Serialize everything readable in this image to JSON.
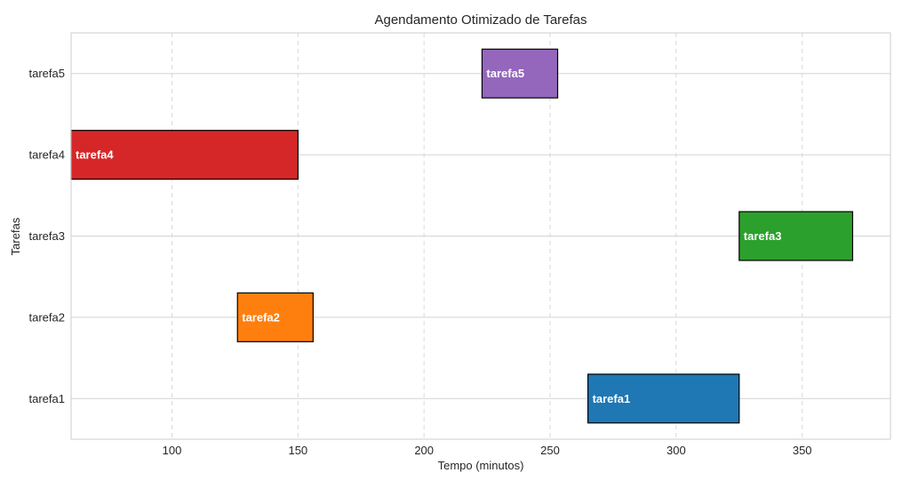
{
  "chart_data": {
    "type": "bar",
    "orientation": "horizontal-gantt",
    "title": "Agendamento Otimizado de Tarefas",
    "xlabel": "Tempo (minutos)",
    "ylabel": "Tarefas",
    "xlim": [
      60,
      385
    ],
    "xticks": [
      100,
      150,
      200,
      250,
      300,
      350
    ],
    "grid": true,
    "categories": [
      "tarefa1",
      "tarefa2",
      "tarefa3",
      "tarefa4",
      "tarefa5"
    ],
    "tasks": [
      {
        "label": "tarefa1",
        "start": 265,
        "end": 325,
        "color": "#1f77b4"
      },
      {
        "label": "tarefa2",
        "start": 126,
        "end": 156,
        "color": "#ff7f0e"
      },
      {
        "label": "tarefa3",
        "start": 325,
        "end": 370,
        "color": "#2ca02c"
      },
      {
        "label": "tarefa4",
        "start": 60,
        "end": 150,
        "color": "#d62728"
      },
      {
        "label": "tarefa5",
        "start": 223,
        "end": 253,
        "color": "#9467bd"
      }
    ]
  }
}
